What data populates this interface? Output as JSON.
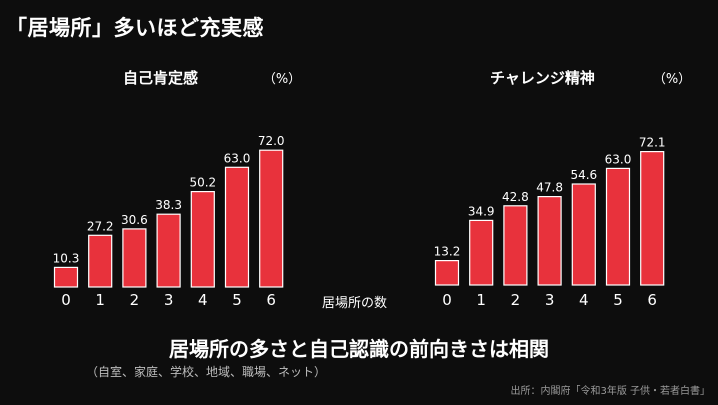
{
  "headline": "「居場所」多いほど充実感",
  "x_axis_caption": "居場所の数",
  "conclusion": "居場所の多さと自己認識の前向きさは相関",
  "note": "（自室、家庭、学校、地域、職場、ネット）",
  "source": "出所：内閣府「令和3年版 子供・若者白書」",
  "colors": {
    "bar": "#e8323c",
    "background": "#0d0d0d",
    "text": "#ffffff"
  },
  "chart_data": [
    {
      "type": "bar",
      "title": "自己肯定感",
      "unit": "（%）",
      "categories": [
        "0",
        "1",
        "2",
        "3",
        "4",
        "5",
        "6"
      ],
      "values": [
        10.3,
        27.2,
        30.6,
        38.3,
        50.2,
        63.0,
        72.0
      ],
      "value_labels": [
        "10.3",
        "27.2",
        "30.6",
        "38.3",
        "50.2",
        "63.0",
        "72.0"
      ]
    },
    {
      "type": "bar",
      "title": "チャレンジ精神",
      "unit": "（%）",
      "categories": [
        "0",
        "1",
        "2",
        "3",
        "4",
        "5",
        "6"
      ],
      "values": [
        13.2,
        34.9,
        42.8,
        47.8,
        54.6,
        63.0,
        72.1
      ],
      "value_labels": [
        "13.2",
        "34.9",
        "42.8",
        "47.8",
        "54.6",
        "63.0",
        "72.1"
      ]
    }
  ]
}
